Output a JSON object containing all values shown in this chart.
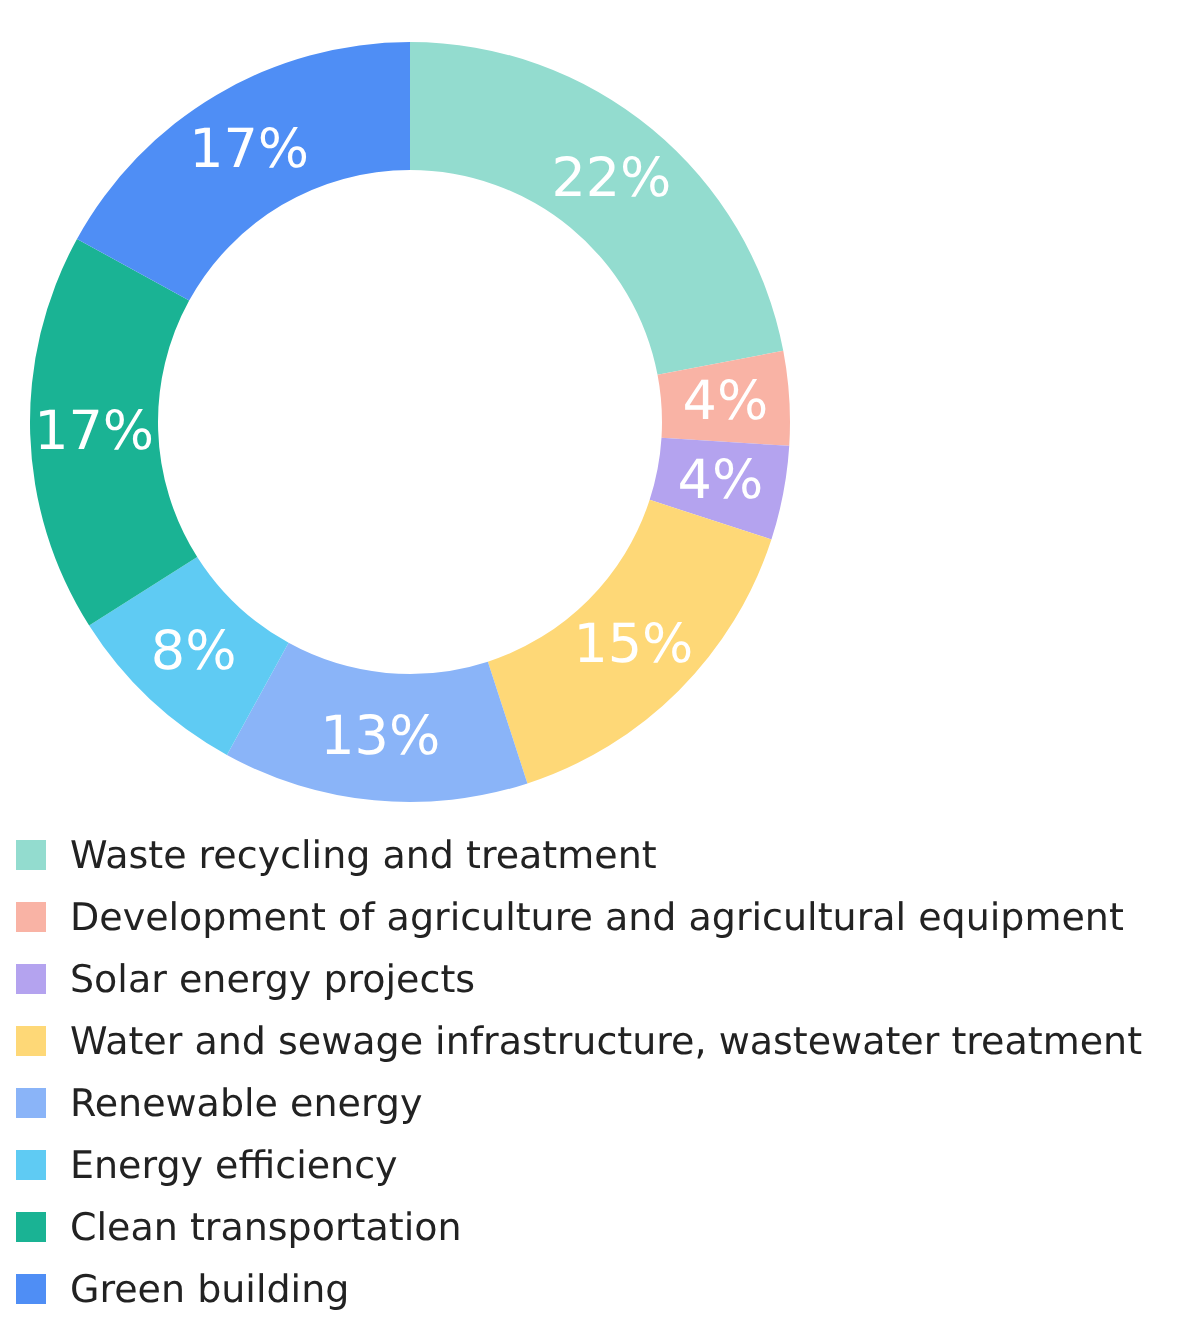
{
  "chart_data": {
    "type": "donut",
    "categories": [
      "Waste recycling and treatment",
      "Development of agriculture and agricultural equipment",
      "Solar energy projects",
      "Water and sewage infrastructure, wastewater treatment",
      "Renewable energy",
      "Energy efficiency",
      "Clean transportation",
      "Green building"
    ],
    "values": [
      22,
      4,
      4,
      15,
      13,
      8,
      17,
      17
    ],
    "value_labels": [
      "22%",
      "4%",
      "4%",
      "15%",
      "13%",
      "8%",
      "17%",
      "17%"
    ],
    "colors": [
      "#93dccf",
      "#f9b3a5",
      "#b4a3ef",
      "#fed877",
      "#8ab4f8",
      "#5fcbf3",
      "#1ab394",
      "#4f8ef5"
    ],
    "legend": "bottom"
  }
}
